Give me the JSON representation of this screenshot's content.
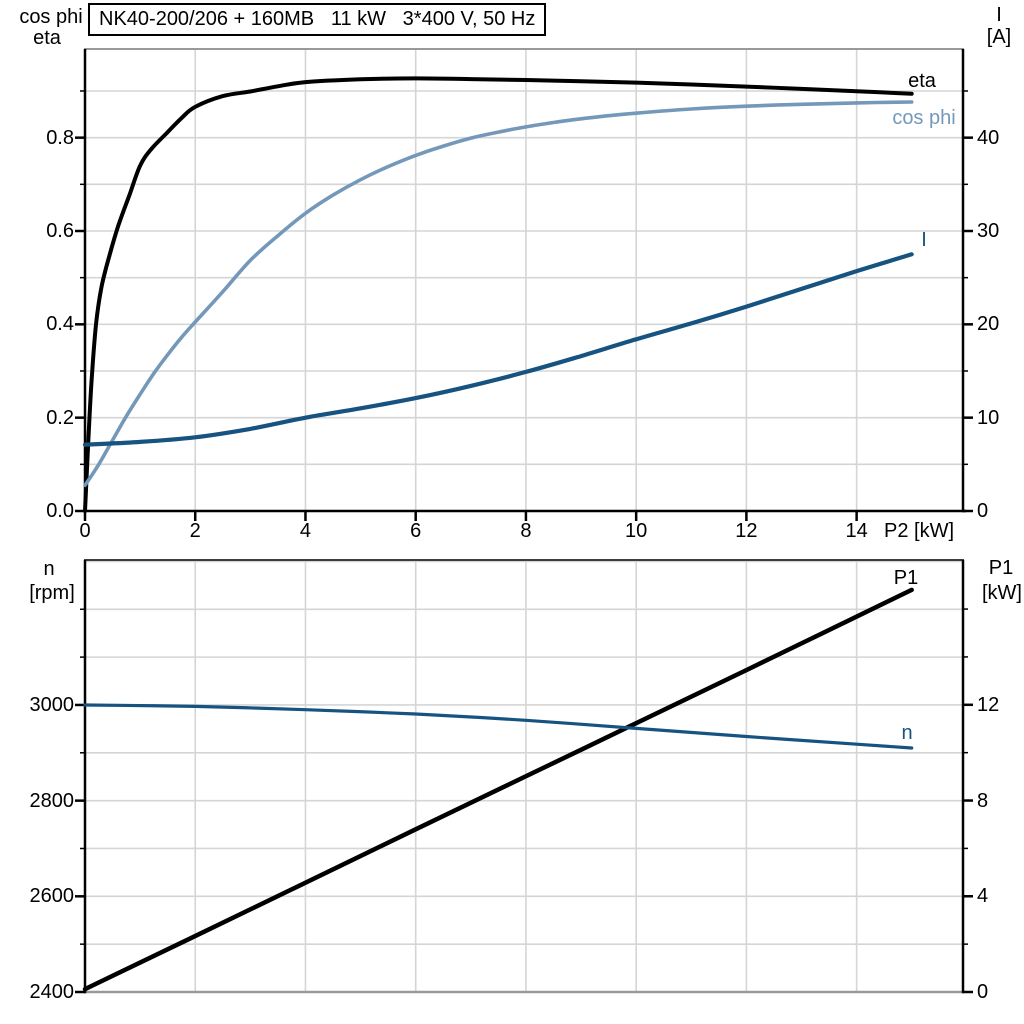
{
  "title": "NK40-200/206 + 160MB   11 kW   3*400 V, 50 Hz",
  "colors": {
    "black": "#000000",
    "dark_blue": "#175380",
    "light_blue": "#7498ba",
    "grid": "#d5d5d5",
    "frame_gray": "#999999",
    "frame_dark": "#3c3c3c",
    "background": "#ffffff"
  },
  "chart_data": [
    {
      "type": "line",
      "title": "NK40-200/206 + 160MB   11 kW   3*400 V, 50 Hz",
      "x_axis": {
        "label": "P2 [kW]",
        "range": [
          0,
          15.93
        ],
        "grid_step": 2,
        "ticks": [
          {
            "v": 0,
            "label": "0"
          },
          {
            "v": 2,
            "label": "2"
          },
          {
            "v": 4,
            "label": "4"
          },
          {
            "v": 6,
            "label": "6"
          },
          {
            "v": 8,
            "label": "8"
          },
          {
            "v": 10,
            "label": "10"
          },
          {
            "v": 12,
            "label": "12"
          },
          {
            "v": 14,
            "label": "14"
          }
        ]
      },
      "left_axis": {
        "label_lines": [
          "cos phi",
          "eta"
        ],
        "range": [
          0,
          0.99
        ],
        "grid_step": 0.1,
        "ticks": [
          {
            "v": 0,
            "label": "0.0"
          },
          {
            "v": 0.2,
            "label": "0.2"
          },
          {
            "v": 0.4,
            "label": "0.4"
          },
          {
            "v": 0.6,
            "label": "0.6"
          },
          {
            "v": 0.8,
            "label": "0.8"
          }
        ],
        "minor_ticks": [
          0.1,
          0.3,
          0.5,
          0.7,
          0.9
        ]
      },
      "right_axis": {
        "label_lines": [
          "I",
          "[A]"
        ],
        "range": [
          0,
          49.5
        ],
        "ticks": [
          {
            "v": 0,
            "label": "0"
          },
          {
            "v": 10,
            "label": "10"
          },
          {
            "v": 20,
            "label": "20"
          },
          {
            "v": 30,
            "label": "30"
          },
          {
            "v": 40,
            "label": "40"
          }
        ],
        "minor_ticks": [
          5,
          15,
          25,
          35,
          45
        ]
      },
      "series": [
        {
          "name": "eta",
          "label": "eta",
          "axis": "left",
          "color": "black",
          "points": [
            [
              0,
              0
            ],
            [
              0.06,
              0.15
            ],
            [
              0.12,
              0.28
            ],
            [
              0.2,
              0.4
            ],
            [
              0.3,
              0.48
            ],
            [
              0.45,
              0.55
            ],
            [
              0.6,
              0.61
            ],
            [
              0.8,
              0.675
            ],
            [
              1.0,
              0.74
            ],
            [
              1.2,
              0.775
            ],
            [
              1.5,
              0.812
            ],
            [
              1.75,
              0.842
            ],
            [
              2,
              0.866
            ],
            [
              2.5,
              0.889
            ],
            [
              3,
              0.899
            ],
            [
              3.5,
              0.91
            ],
            [
              4,
              0.919
            ],
            [
              5,
              0.925
            ],
            [
              6,
              0.927
            ],
            [
              7,
              0.9255
            ],
            [
              8,
              0.9235
            ],
            [
              9,
              0.921
            ],
            [
              10,
              0.918
            ],
            [
              11,
              0.914
            ],
            [
              12,
              0.9095
            ],
            [
              13,
              0.9045
            ],
            [
              14,
              0.8995
            ],
            [
              15,
              0.894
            ]
          ]
        },
        {
          "name": "cos-phi",
          "label": "cos phi",
          "axis": "left",
          "color": "light_blue",
          "points": [
            [
              0,
              0.055
            ],
            [
              0.25,
              0.1
            ],
            [
              0.5,
              0.152
            ],
            [
              0.75,
              0.203
            ],
            [
              1,
              0.25
            ],
            [
              1.25,
              0.295
            ],
            [
              1.5,
              0.335
            ],
            [
              1.75,
              0.372
            ],
            [
              2,
              0.405
            ],
            [
              2.5,
              0.47
            ],
            [
              3,
              0.537
            ],
            [
              3.5,
              0.59
            ],
            [
              4,
              0.638
            ],
            [
              4.5,
              0.677
            ],
            [
              5,
              0.71
            ],
            [
              5.5,
              0.738
            ],
            [
              6,
              0.762
            ],
            [
              6.5,
              0.782
            ],
            [
              7,
              0.799
            ],
            [
              7.5,
              0.812
            ],
            [
              8,
              0.823
            ],
            [
              8.5,
              0.8325
            ],
            [
              9,
              0.8405
            ],
            [
              9.5,
              0.847
            ],
            [
              10,
              0.8525
            ],
            [
              11,
              0.8615
            ],
            [
              12,
              0.8675
            ],
            [
              13,
              0.8715
            ],
            [
              14,
              0.8745
            ],
            [
              15,
              0.8765
            ]
          ]
        },
        {
          "name": "current",
          "label": "I",
          "axis": "right",
          "color": "dark_blue",
          "points": [
            [
              0,
              7.1
            ],
            [
              1,
              7.4
            ],
            [
              2,
              7.9
            ],
            [
              3,
              8.8
            ],
            [
              4,
              10.0
            ],
            [
              5,
              11.0
            ],
            [
              6,
              12.1
            ],
            [
              7,
              13.4
            ],
            [
              8,
              14.9
            ],
            [
              9,
              16.6
            ],
            [
              10,
              18.4
            ],
            [
              11,
              20.1
            ],
            [
              12,
              21.9
            ],
            [
              13,
              23.8
            ],
            [
              14,
              25.7
            ],
            [
              15,
              27.5
            ]
          ]
        }
      ]
    },
    {
      "type": "line",
      "x_axis": {
        "label": "",
        "range": [
          0,
          15.93
        ],
        "grid_step": 2,
        "ticks": []
      },
      "left_axis": {
        "label_lines": [
          "n",
          "[rpm]"
        ],
        "range": [
          2400,
          3303
        ],
        "grid_step": 100,
        "ticks": [
          {
            "v": 2400,
            "label": "2400"
          },
          {
            "v": 2600,
            "label": "2600"
          },
          {
            "v": 2800,
            "label": "2800"
          },
          {
            "v": 3000,
            "label": "3000"
          }
        ],
        "minor_ticks": [
          2500,
          2700,
          2900,
          3100,
          3200
        ]
      },
      "right_axis": {
        "label_lines": [
          "P1",
          "[kW]"
        ],
        "range": [
          0,
          18.05
        ],
        "ticks": [
          {
            "v": 0,
            "label": "0"
          },
          {
            "v": 4,
            "label": "4"
          },
          {
            "v": 8,
            "label": "8"
          },
          {
            "v": 12,
            "label": "12"
          }
        ],
        "minor_ticks": [
          2,
          6,
          10,
          14,
          16
        ]
      },
      "series": [
        {
          "name": "p1",
          "label": "P1",
          "axis": "right",
          "color": "black",
          "points": [
            [
              0,
              0.12
            ],
            [
              3,
              3.45
            ],
            [
              6,
              6.8
            ],
            [
              9,
              10.12
            ],
            [
              12,
              13.45
            ],
            [
              15,
              16.8
            ]
          ]
        },
        {
          "name": "n",
          "label": "n",
          "axis": "left",
          "color": "dark_blue",
          "points": [
            [
              0,
              3000
            ],
            [
              2,
              2997
            ],
            [
              4,
              2990
            ],
            [
              6,
              2981
            ],
            [
              8,
              2968
            ],
            [
              10,
              2951
            ],
            [
              12,
              2934
            ],
            [
              14,
              2918
            ],
            [
              15,
              2910
            ]
          ]
        }
      ]
    }
  ]
}
